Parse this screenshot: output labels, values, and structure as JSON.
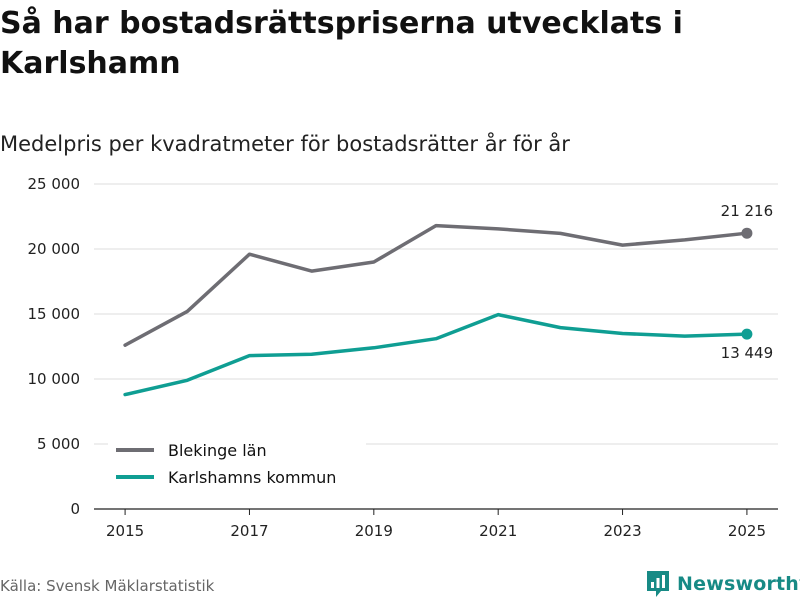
{
  "title": "Så har bostadsrättspriserna utvecklats i Karlshamn",
  "subtitle": "Medelpris per kvadratmeter för bostadsrätter år för år",
  "source": "Källa: Svensk Mäklarstatistik",
  "brand": "Newsworthy",
  "colors": {
    "blekinge": "#6e6d73",
    "karlshamn": "#0f9e93",
    "grid": "#dddddd",
    "axis": "#222222",
    "brand": "#178a85"
  },
  "chart_data": {
    "type": "line",
    "title": "Så har bostadsrättspriserna utvecklats i Karlshamn",
    "subtitle": "Medelpris per kvadratmeter för bostadsrätter år för år",
    "x": [
      2015,
      2016,
      2017,
      2018,
      2019,
      2020,
      2021,
      2022,
      2023,
      2024,
      2025
    ],
    "xticks": [
      "2015",
      "2017",
      "2019",
      "2021",
      "2023",
      "2025"
    ],
    "xlim": [
      2014.5,
      2025.5
    ],
    "ylim": [
      0,
      25000
    ],
    "yticks": [
      0,
      5000,
      10000,
      15000,
      20000,
      25000
    ],
    "ytick_labels": [
      "0",
      "5 000",
      "10 000",
      "15 000",
      "20 000",
      "25 000"
    ],
    "grid": true,
    "legend_position": "bottom-left",
    "series": [
      {
        "name": "Blekinge län",
        "color": "#6e6d73",
        "values": [
          12600,
          15200,
          19600,
          18300,
          19000,
          21800,
          21550,
          21200,
          20300,
          20700,
          21216
        ],
        "end_label": "21 216"
      },
      {
        "name": "Karlshamns kommun",
        "color": "#0f9e93",
        "values": [
          8800,
          9900,
          11800,
          11900,
          12400,
          13100,
          14950,
          13950,
          13500,
          13300,
          13449
        ],
        "end_label": "13 449"
      }
    ]
  }
}
